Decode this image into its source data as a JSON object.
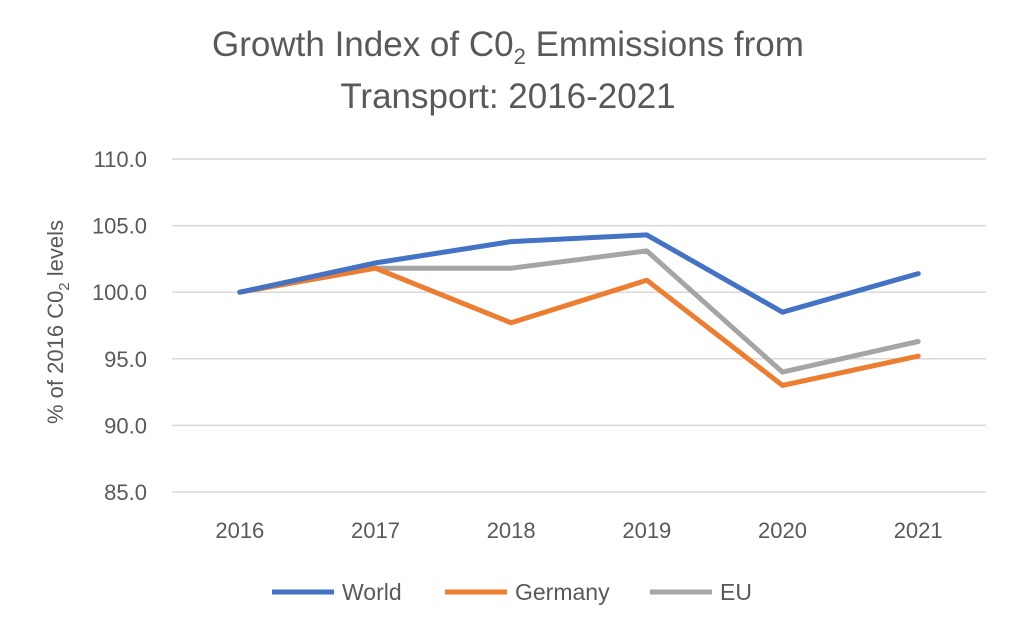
{
  "chart_data": {
    "type": "line",
    "title": {
      "line1_before": "Growth Index of C0",
      "line1_sub": "2",
      "line1_after": " Emmissions from",
      "line2": "Transport: 2016-2021"
    },
    "ylabel": {
      "before": "% of 2016 C0",
      "sub": "2",
      "after": " levels"
    },
    "xlabel": "",
    "categories": [
      "2016",
      "2017",
      "2018",
      "2019",
      "2020",
      "2021"
    ],
    "y_ticks": [
      "85.0",
      "90.0",
      "95.0",
      "100.0",
      "105.0",
      "110.0"
    ],
    "ylim": [
      85,
      110
    ],
    "grid": true,
    "legend_position": "bottom",
    "series": [
      {
        "name": "World",
        "color": "#4472c4",
        "values": [
          100.0,
          102.2,
          103.8,
          104.3,
          98.5,
          101.4
        ]
      },
      {
        "name": "Germany",
        "color": "#ed7d31",
        "values": [
          100.0,
          101.8,
          97.7,
          100.9,
          93.0,
          95.2
        ]
      },
      {
        "name": "EU",
        "color": "#a5a5a5",
        "values": [
          100.0,
          101.8,
          101.8,
          103.1,
          94.0,
          96.3
        ]
      }
    ]
  }
}
